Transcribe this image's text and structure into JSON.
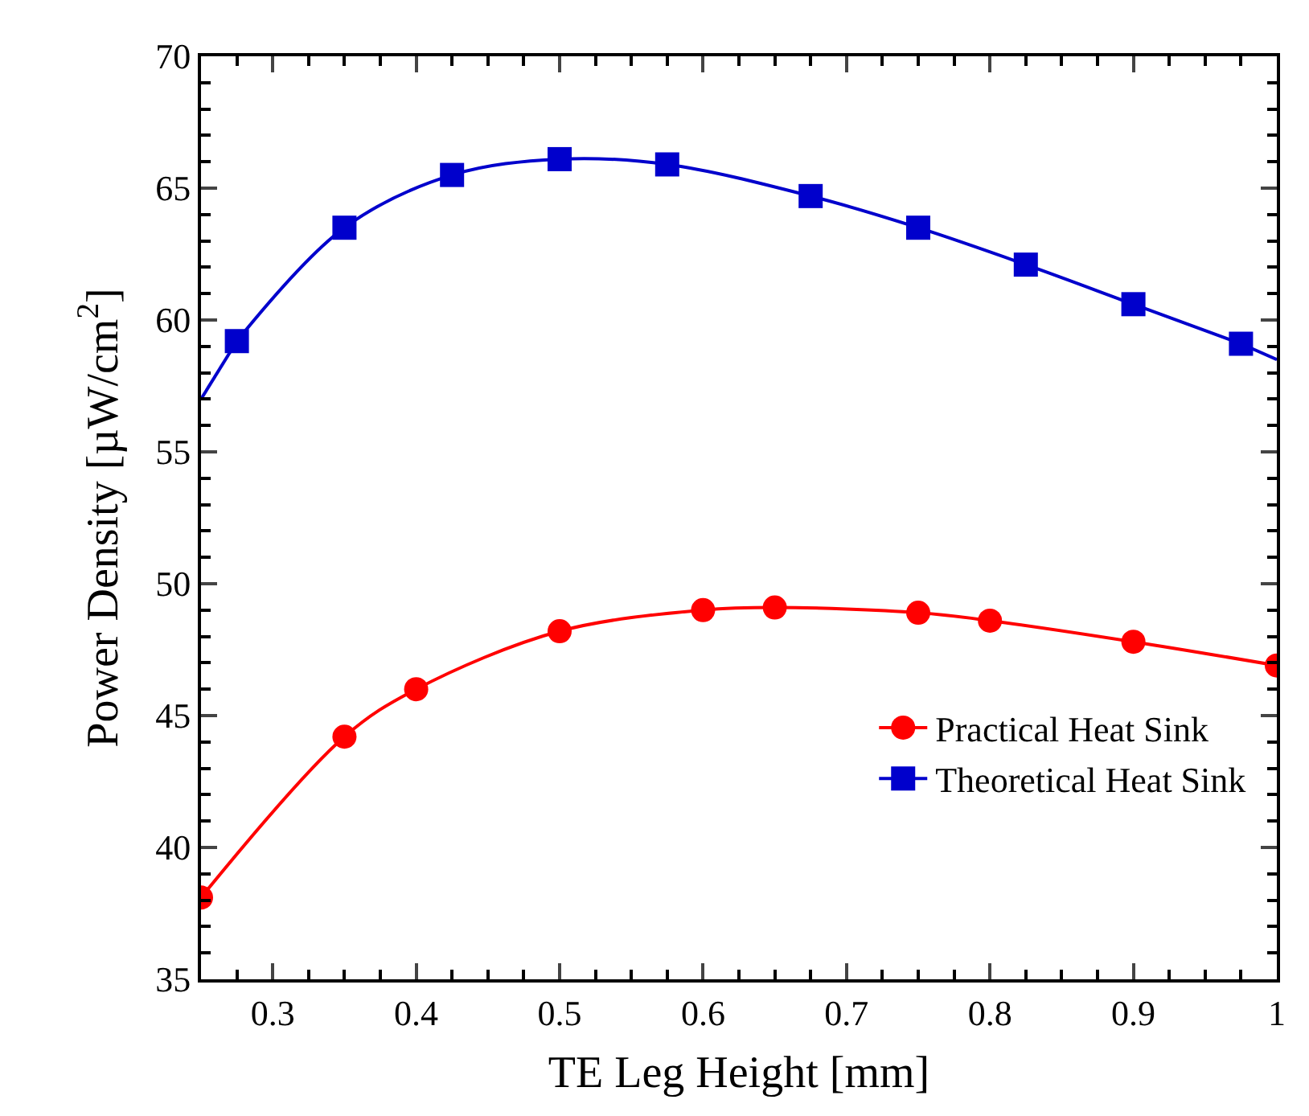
{
  "chart_data": {
    "type": "line",
    "xlabel": "TE Leg Height [mm]",
    "ylabel": "Power Density [µW/cm$^{2}$]",
    "xlim": [
      0.25,
      1.0
    ],
    "xticks": [
      {
        "value": 0.275,
        "label": null
      },
      0.3,
      {
        "value": 0.325,
        "label": null
      },
      {
        "value": 0.35,
        "label": null
      },
      {
        "value": 0.375,
        "label": null
      },
      0.4,
      {
        "value": 0.425,
        "label": null
      },
      {
        "value": 0.45,
        "label": null
      },
      {
        "value": 0.475,
        "label": null
      },
      0.5,
      {
        "value": 0.525,
        "label": null
      },
      {
        "value": 0.55,
        "label": null
      },
      {
        "value": 0.575,
        "label": null
      },
      0.6,
      {
        "value": 0.625,
        "label": null
      },
      {
        "value": 0.65,
        "label": null
      },
      {
        "value": 0.675,
        "label": null
      },
      0.7,
      {
        "value": 0.725,
        "label": null
      },
      {
        "value": 0.75,
        "label": null
      },
      {
        "value": 0.775,
        "label": null
      },
      0.8,
      {
        "value": 0.825,
        "label": null
      },
      {
        "value": 0.85,
        "label": null
      },
      {
        "value": 0.875,
        "label": null
      },
      0.9,
      {
        "value": 0.925,
        "label": null
      },
      {
        "value": 0.95,
        "label": null
      },
      {
        "value": 0.975,
        "label": null
      },
      1
    ],
    "ylim": [
      35,
      70
    ],
    "yticks": [
      35,
      {
        "value": 36,
        "label": null
      },
      {
        "value": 37,
        "label": null
      },
      {
        "value": 38,
        "label": null
      },
      {
        "value": 39,
        "label": null
      },
      40,
      {
        "value": 41,
        "label": null
      },
      {
        "value": 42,
        "label": null
      },
      {
        "value": 43,
        "label": null
      },
      {
        "value": 44,
        "label": null
      },
      45,
      {
        "value": 46,
        "label": null
      },
      {
        "value": 47,
        "label": null
      },
      {
        "value": 48,
        "label": null
      },
      {
        "value": 49,
        "label": null
      },
      50,
      {
        "value": 51,
        "label": null
      },
      {
        "value": 52,
        "label": null
      },
      {
        "value": 53,
        "label": null
      },
      {
        "value": 54,
        "label": null
      },
      55,
      {
        "value": 56,
        "label": null
      },
      {
        "value": 57,
        "label": null
      },
      {
        "value": 58,
        "label": null
      },
      {
        "value": 59,
        "label": null
      },
      60,
      {
        "value": 61,
        "label": null
      },
      {
        "value": 62,
        "label": null
      },
      {
        "value": 63,
        "label": null
      },
      {
        "value": 64,
        "label": null
      },
      65,
      {
        "value": 66,
        "label": null
      },
      {
        "value": 67,
        "label": null
      },
      {
        "value": 68,
        "label": null
      },
      {
        "value": 69,
        "label": null
      },
      70
    ],
    "legend": "bottom right",
    "line_style": "solid",
    "series": [
      {
        "name": "Practical Heat Sink",
        "color": "#ff0000",
        "marker": "circle",
        "x": [
          0.25,
          0.35,
          0.4,
          0.5,
          0.6,
          0.65,
          0.75,
          0.8,
          0.9,
          1.0
        ],
        "values": [
          38.1,
          44.2,
          46.0,
          48.2,
          49.0,
          49.1,
          48.9,
          48.6,
          47.8,
          46.9
        ]
      },
      {
        "name": "Theoretical Heat Sink",
        "color": "#0000cc",
        "marker": "square",
        "x": [
          0.275,
          0.35,
          0.425,
          0.5,
          0.575,
          0.675,
          0.75,
          0.825,
          0.9,
          0.975
        ],
        "values": [
          59.2,
          63.5,
          65.5,
          66.1,
          65.9,
          64.7,
          63.5,
          62.1,
          60.6,
          59.1
        ]
      },
      {
        "color": "#0000cc",
        "marker": "none",
        "x": [
          0.25,
          0.275
        ],
        "values": [
          57.0,
          59.2
        ]
      },
      {
        "color": "#0000cc",
        "marker": "none",
        "x": [
          0.975,
          1.0
        ],
        "values": [
          59.1,
          58.5
        ]
      }
    ]
  }
}
